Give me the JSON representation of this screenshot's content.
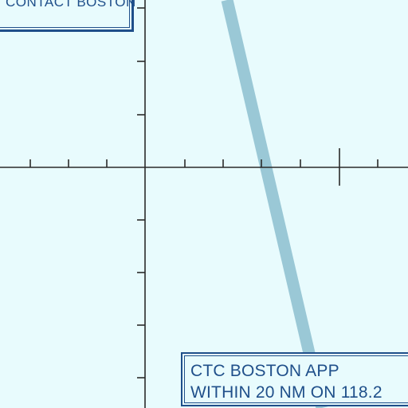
{
  "colors": {
    "background": "#e8fbfd",
    "ink": "#1f4f8a",
    "grid": "#2a2a2a",
    "route": "#9ac8d6"
  },
  "notices": {
    "top": {
      "text": "CONTACT BOSTON"
    },
    "bottom": {
      "line1": "CTC BOSTON APP",
      "line2": "WITHIN 20 NM ON 118.2"
    }
  }
}
